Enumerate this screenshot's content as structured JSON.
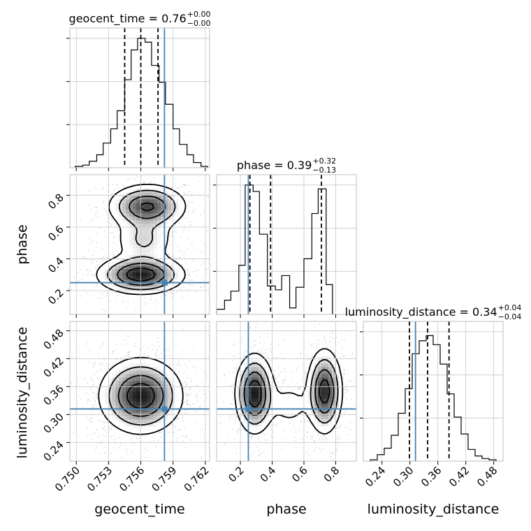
{
  "chart_data": {
    "type": "corner",
    "parameters": [
      "geocent_time",
      "phase",
      "luminosity_distance"
    ],
    "truth": {
      "geocent_time": 0.7582,
      "phase": 0.25,
      "luminosity_distance": 0.312
    },
    "colors": {
      "truth": "#4682b4",
      "hist": "#000000",
      "grid": "#c8c8c8",
      "points": "#9a9a9a"
    },
    "panels": [
      {
        "id": "hist-geocent_time",
        "kind": "histogram",
        "param": "geocent_time",
        "title": "geocent_time = 0.76",
        "title_sup": "+0.00",
        "title_sub": "−0.00",
        "xlim": [
          0.7494,
          0.7624
        ],
        "ylim": [
          0,
          1.0
        ],
        "quantiles": [
          0.7545,
          0.756,
          0.7576
        ],
        "bin_edges": [
          0.7499,
          0.7506,
          0.7512,
          0.7519,
          0.7525,
          0.7532,
          0.7538,
          0.7545,
          0.7551,
          0.7557,
          0.7564,
          0.757,
          0.7577,
          0.7583,
          0.759,
          0.7596,
          0.7603,
          0.7609,
          0.7616,
          0.7622
        ],
        "counts": [
          0.01,
          0.02,
          0.05,
          0.1,
          0.19,
          0.3,
          0.44,
          0.68,
          0.91,
          1.0,
          0.97,
          0.79,
          0.66,
          0.49,
          0.3,
          0.18,
          0.1,
          0.04,
          0.01
        ]
      },
      {
        "id": "hist-phase",
        "kind": "histogram",
        "param": "phase",
        "title": "phase = 0.39",
        "title_sup": "+0.32",
        "title_sub": "−0.13",
        "xlim": [
          0.05,
          0.93
        ],
        "ylim": [
          0,
          1.0
        ],
        "quantiles": [
          0.26,
          0.39,
          0.71
        ],
        "bin_edges": [
          0.05,
          0.1,
          0.14,
          0.19,
          0.23,
          0.28,
          0.32,
          0.37,
          0.42,
          0.46,
          0.51,
          0.55,
          0.6,
          0.65,
          0.69,
          0.74,
          0.78
        ],
        "counts": [
          0.04,
          0.11,
          0.18,
          0.38,
          1.0,
          0.95,
          0.62,
          0.22,
          0.19,
          0.3,
          0.05,
          0.21,
          0.43,
          0.78,
          0.97,
          0.23
        ]
      },
      {
        "id": "hist-luminosity_distance",
        "kind": "histogram",
        "param": "luminosity_distance",
        "title": "luminosity_distance = 0.34",
        "title_sup": "+0.04",
        "title_sub": "−0.04",
        "xlim": [
          0.2,
          0.5
        ],
        "ylim": [
          0,
          1.0
        ],
        "quantiles": [
          0.299,
          0.338,
          0.384
        ],
        "bin_edges": [
          0.215,
          0.23,
          0.245,
          0.26,
          0.275,
          0.29,
          0.305,
          0.32,
          0.335,
          0.35,
          0.365,
          0.38,
          0.395,
          0.41,
          0.425,
          0.44,
          0.455,
          0.47,
          0.485
        ],
        "counts": [
          0.01,
          0.05,
          0.1,
          0.2,
          0.37,
          0.56,
          0.83,
          0.93,
          0.97,
          0.9,
          0.75,
          0.52,
          0.34,
          0.21,
          0.09,
          0.04,
          0.02,
          0.01
        ]
      },
      {
        "id": "scatter-geocent-phase",
        "kind": "density2d",
        "x_param": "geocent_time",
        "y_param": "phase",
        "xlim": [
          0.7494,
          0.7624
        ],
        "ylim": [
          0.05,
          0.93
        ],
        "modes": [
          {
            "x": 0.7566,
            "y": 0.73,
            "sx": 0.0018,
            "sy": 0.07,
            "weight": 0.4
          },
          {
            "x": 0.756,
            "y": 0.3,
            "sx": 0.002,
            "sy": 0.06,
            "weight": 0.45
          },
          {
            "x": 0.7563,
            "y": 0.52,
            "sx": 0.0015,
            "sy": 0.08,
            "weight": 0.15
          }
        ]
      },
      {
        "id": "scatter-geocent-dist",
        "kind": "density2d",
        "x_param": "geocent_time",
        "y_param": "luminosity_distance",
        "xlim": [
          0.7494,
          0.7624
        ],
        "ylim": [
          0.2,
          0.5
        ],
        "modes": [
          {
            "x": 0.756,
            "y": 0.34,
            "sx": 0.0019,
            "sy": 0.04,
            "weight": 1.0
          }
        ]
      },
      {
        "id": "scatter-phase-dist",
        "kind": "density2d",
        "x_param": "phase",
        "y_param": "luminosity_distance",
        "xlim": [
          0.05,
          0.93
        ],
        "ylim": [
          0.2,
          0.5
        ],
        "modes": [
          {
            "x": 0.29,
            "y": 0.345,
            "sx": 0.06,
            "sy": 0.042,
            "weight": 0.48
          },
          {
            "x": 0.73,
            "y": 0.35,
            "sx": 0.055,
            "sy": 0.045,
            "weight": 0.44
          },
          {
            "x": 0.51,
            "y": 0.32,
            "sx": 0.08,
            "sy": 0.03,
            "weight": 0.08
          }
        ]
      }
    ],
    "ticks": {
      "geocent_time": [
        "0.750",
        "0.753",
        "0.756",
        "0.759",
        "0.762"
      ],
      "phase": [
        "0.2",
        "0.4",
        "0.6",
        "0.8"
      ],
      "luminosity_distance": [
        "0.24",
        "0.30",
        "0.36",
        "0.42",
        "0.48"
      ]
    },
    "axis_labels": {
      "x_bottom": [
        "geocent_time",
        "phase",
        "luminosity_distance"
      ],
      "y_left": [
        "phase",
        "luminosity_distance"
      ]
    },
    "grid": true
  }
}
